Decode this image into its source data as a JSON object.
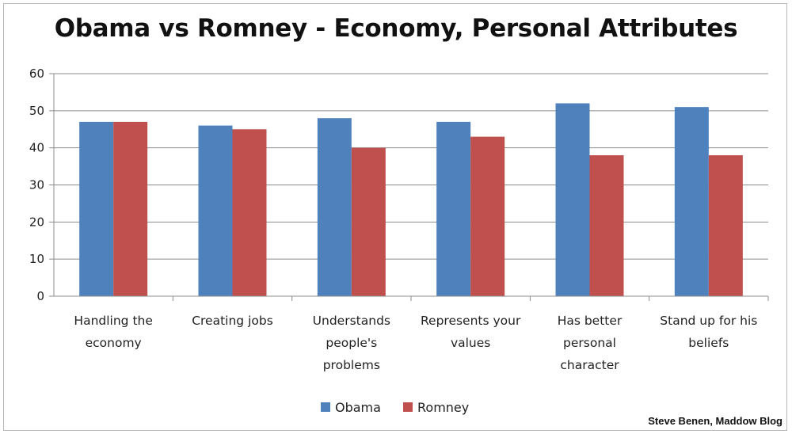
{
  "chart_data": {
    "type": "bar",
    "title": "Obama vs Romney - Economy, Personal Attributes",
    "categories": [
      [
        "Handling the",
        "economy"
      ],
      [
        "Creating jobs"
      ],
      [
        "Understands",
        "people's",
        "problems"
      ],
      [
        "Represents your",
        "values"
      ],
      [
        "Has better",
        "personal",
        "character"
      ],
      [
        "Stand up for his",
        "beliefs"
      ]
    ],
    "series": [
      {
        "name": "Obama",
        "color": "#4f81bd",
        "values": [
          47,
          46,
          48,
          47,
          52,
          51
        ]
      },
      {
        "name": "Romney",
        "color": "#c0504d",
        "values": [
          47,
          45,
          40,
          43,
          38,
          38
        ]
      }
    ],
    "ylim": [
      0,
      60
    ],
    "yticks": [
      "0",
      "10",
      "20",
      "30",
      "40",
      "50",
      "60"
    ],
    "grid": true,
    "legend": "bottom",
    "xlabel": "",
    "ylabel": ""
  },
  "credit": "Steve Benen, Maddow Blog"
}
